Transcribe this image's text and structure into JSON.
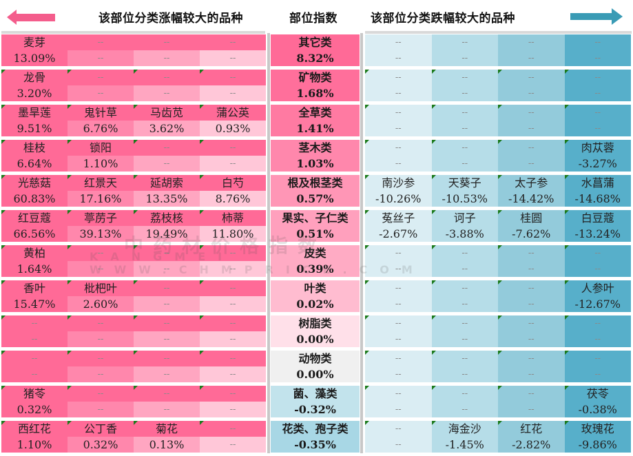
{
  "header": {
    "left_title": "该部位分类涨幅较大的品种",
    "mid_title": "部位指数",
    "right_title": "该部位分类跌幅较大的品种",
    "left_arrow_icon": "arrow-left-icon",
    "right_arrow_icon": "arrow-right-icon"
  },
  "colors": {
    "pink_strong": "#ff6a97",
    "pink_mid": "#ff87ac",
    "pink_light": "#ffa6c1",
    "pink_pale": "#ffc7d8",
    "blue_pale": "#daedf3",
    "blue_light": "#b6dde8",
    "blue_mid": "#93cbdb",
    "blue_strong": "#57afca",
    "neutral": "#f0f0f0",
    "separator": "#c8c8c8"
  },
  "watermark": {
    "line1": "中药材价格指数",
    "line2": "KANGMEI WWW.CHMPRICE.COM"
  },
  "rows": [
    {
      "category": "其它类",
      "index": "8.32%",
      "mid_color": "#ff6a97",
      "gainers": [
        {
          "name": "麦芽",
          "change": "13.09%"
        },
        {
          "name": "--",
          "change": "--"
        },
        {
          "name": "--",
          "change": "--"
        },
        {
          "name": "--",
          "change": "--"
        }
      ],
      "losers": [
        {
          "name": "--",
          "change": "--"
        },
        {
          "name": "--",
          "change": "--"
        },
        {
          "name": "--",
          "change": "--"
        },
        {
          "name": "--",
          "change": "--"
        }
      ]
    },
    {
      "category": "矿物类",
      "index": "1.68%",
      "mid_color": "#ff6f9b",
      "gainers": [
        {
          "name": "龙骨",
          "change": "3.20%"
        },
        {
          "name": "--",
          "change": "--"
        },
        {
          "name": "--",
          "change": "--"
        },
        {
          "name": "--",
          "change": "--"
        }
      ],
      "losers": [
        {
          "name": "--",
          "change": "--"
        },
        {
          "name": "--",
          "change": "--"
        },
        {
          "name": "--",
          "change": "--"
        },
        {
          "name": "--",
          "change": "--"
        }
      ]
    },
    {
      "category": "全草类",
      "index": "1.41%",
      "mid_color": "#ff7aa2",
      "gainers": [
        {
          "name": "墨旱莲",
          "change": "9.51%"
        },
        {
          "name": "鬼针草",
          "change": "6.76%"
        },
        {
          "name": "马齿苋",
          "change": "3.62%"
        },
        {
          "name": "蒲公英",
          "change": "0.93%"
        }
      ],
      "losers": [
        {
          "name": "--",
          "change": "--"
        },
        {
          "name": "--",
          "change": "--"
        },
        {
          "name": "--",
          "change": "--"
        },
        {
          "name": "--",
          "change": "--"
        }
      ]
    },
    {
      "category": "茎木类",
      "index": "1.03%",
      "mid_color": "#ff87ac",
      "gainers": [
        {
          "name": "桂枝",
          "change": "6.64%"
        },
        {
          "name": "锁阳",
          "change": "1.10%"
        },
        {
          "name": "--",
          "change": "--"
        },
        {
          "name": "--",
          "change": "--"
        }
      ],
      "losers": [
        {
          "name": "--",
          "change": "--"
        },
        {
          "name": "--",
          "change": "--"
        },
        {
          "name": "--",
          "change": "--"
        },
        {
          "name": "肉苁蓉",
          "change": "-3.27%"
        }
      ]
    },
    {
      "category": "根及根茎类",
      "index": "0.57%",
      "mid_color": "#ff96b6",
      "gainers": [
        {
          "name": "光慈菇",
          "change": "60.83%"
        },
        {
          "name": "红景天",
          "change": "17.16%"
        },
        {
          "name": "延胡索",
          "change": "13.35%"
        },
        {
          "name": "白芍",
          "change": "8.76%"
        }
      ],
      "losers": [
        {
          "name": "南沙参",
          "change": "-10.26%"
        },
        {
          "name": "天葵子",
          "change": "-10.53%"
        },
        {
          "name": "太子参",
          "change": "-14.42%"
        },
        {
          "name": "水菖蒲",
          "change": "-14.68%"
        }
      ]
    },
    {
      "category": "果实、子仁类",
      "index": "0.51%",
      "mid_color": "#ffa0bd",
      "gainers": [
        {
          "name": "红豆蔻",
          "change": "66.56%"
        },
        {
          "name": "葶苈子",
          "change": "39.13%"
        },
        {
          "name": "荔枝核",
          "change": "19.49%"
        },
        {
          "name": "柿蒂",
          "change": "11.80%"
        }
      ],
      "losers": [
        {
          "name": "菟丝子",
          "change": "-2.67%"
        },
        {
          "name": "诃子",
          "change": "-3.88%"
        },
        {
          "name": "桂圆",
          "change": "-7.62%"
        },
        {
          "name": "白豆蔻",
          "change": "-13.24%"
        }
      ]
    },
    {
      "category": "皮类",
      "index": "0.39%",
      "mid_color": "#ffabc4",
      "gainers": [
        {
          "name": "黄柏",
          "change": "1.64%"
        },
        {
          "name": "--",
          "change": "--"
        },
        {
          "name": "--",
          "change": "--"
        },
        {
          "name": "--",
          "change": "--"
        }
      ],
      "losers": [
        {
          "name": "--",
          "change": "--"
        },
        {
          "name": "--",
          "change": "--"
        },
        {
          "name": "--",
          "change": "--"
        },
        {
          "name": "--",
          "change": "--"
        }
      ]
    },
    {
      "category": "叶类",
      "index": "0.02%",
      "mid_color": "#ffbcd0",
      "gainers": [
        {
          "name": "香叶",
          "change": "15.47%"
        },
        {
          "name": "枇杷叶",
          "change": "2.60%"
        },
        {
          "name": "--",
          "change": "--"
        },
        {
          "name": "--",
          "change": "--"
        }
      ],
      "losers": [
        {
          "name": "--",
          "change": "--"
        },
        {
          "name": "--",
          "change": "--"
        },
        {
          "name": "--",
          "change": "--"
        },
        {
          "name": "人参叶",
          "change": "-12.67%"
        }
      ]
    },
    {
      "category": "树脂类",
      "index": "0.00%",
      "mid_color": "#ffe0e9",
      "gainers": [
        {
          "name": "--",
          "change": "--"
        },
        {
          "name": "--",
          "change": "--"
        },
        {
          "name": "--",
          "change": "--"
        },
        {
          "name": "--",
          "change": "--"
        }
      ],
      "losers": [
        {
          "name": "--",
          "change": "--"
        },
        {
          "name": "--",
          "change": "--"
        },
        {
          "name": "--",
          "change": "--"
        },
        {
          "name": "--",
          "change": "--"
        }
      ]
    },
    {
      "category": "动物类",
      "index": "0.00%",
      "mid_color": "#f0f0f0",
      "gainers": [
        {
          "name": "--",
          "change": "--"
        },
        {
          "name": "--",
          "change": "--"
        },
        {
          "name": "--",
          "change": "--"
        },
        {
          "name": "--",
          "change": "--"
        }
      ],
      "losers": [
        {
          "name": "--",
          "change": "--"
        },
        {
          "name": "--",
          "change": "--"
        },
        {
          "name": "--",
          "change": "--"
        },
        {
          "name": "--",
          "change": "--"
        }
      ]
    },
    {
      "category": "菌、藻类",
      "index": "-0.32%",
      "mid_color": "#c2e3ec",
      "gainers": [
        {
          "name": "猪苓",
          "change": "0.32%"
        },
        {
          "name": "--",
          "change": "--"
        },
        {
          "name": "--",
          "change": "--"
        },
        {
          "name": "--",
          "change": "--"
        }
      ],
      "losers": [
        {
          "name": "--",
          "change": "--"
        },
        {
          "name": "--",
          "change": "--"
        },
        {
          "name": "--",
          "change": "--"
        },
        {
          "name": "茯苓",
          "change": "-0.38%"
        }
      ]
    },
    {
      "category": "花类、孢子类",
      "index": "-0.35%",
      "mid_color": "#a8d7e5",
      "gainers": [
        {
          "name": "西红花",
          "change": "1.10%"
        },
        {
          "name": "公丁香",
          "change": "0.32%"
        },
        {
          "name": "菊花",
          "change": "0.13%"
        },
        {
          "name": "--",
          "change": "--"
        }
      ],
      "losers": [
        {
          "name": "--",
          "change": "--"
        },
        {
          "name": "海金沙",
          "change": "-1.45%"
        },
        {
          "name": "红花",
          "change": "-2.82%"
        },
        {
          "name": "玫瑰花",
          "change": "-9.86%"
        }
      ]
    }
  ]
}
